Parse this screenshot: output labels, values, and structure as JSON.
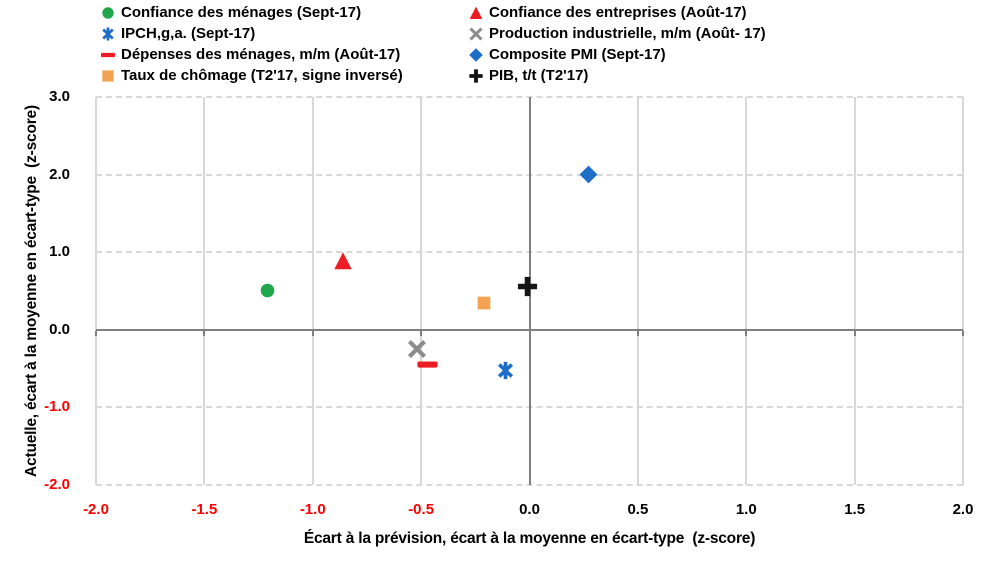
{
  "chart_data": {
    "type": "scatter",
    "title": "",
    "xlabel": "Écart à la prévision, écart à la moyenne en écart-type  (z-score)",
    "ylabel": "Actuelle, écart à la moyenne en écart-type  (z-score)",
    "xlim": [
      -2.0,
      2.0
    ],
    "ylim": [
      -2.0,
      3.0
    ],
    "x_ticks": [
      -2.0,
      -1.5,
      -1.0,
      -0.5,
      0.0,
      0.5,
      1.0,
      1.5,
      2.0
    ],
    "y_ticks": [
      3.0,
      2.0,
      1.0,
      0.0,
      -1.0,
      -2.0
    ],
    "grid": {
      "horizontal": "dashed",
      "vertical": "solid",
      "zero_lines": "solid-dark"
    },
    "legend_position": "top",
    "colors": {
      "green": "#21A74B",
      "red": "#ED1C24",
      "blue": "#1E6EC8",
      "gray": "#8C8C8C",
      "orange": "#F2A352",
      "black": "#151515",
      "negative_tick": "#FF0000",
      "axis_line": "#7F7F7F",
      "gridline": "#D8D8D8"
    },
    "series": [
      {
        "id": "confiance-menages",
        "name": "Confiance des ménages (Sept-17)",
        "marker": "circle",
        "color": "#21A74B",
        "size": 19,
        "x": -1.21,
        "y": 0.51
      },
      {
        "id": "confiance-entreprises",
        "name": "Confiance des entreprises (Août-17)",
        "marker": "triangle",
        "color": "#ED1C24",
        "size": 22,
        "x": -0.86,
        "y": 0.89
      },
      {
        "id": "ipch",
        "name": "IPCH,g,a. (Sept-17)",
        "marker": "star-x",
        "color": "#1E6EC8",
        "size": 21,
        "x": -0.11,
        "y": -0.52
      },
      {
        "id": "production-industrielle",
        "name": "Production industrielle, m/m (Août- 17)",
        "marker": "x",
        "color": "#8C8C8C",
        "size": 22,
        "x": -0.52,
        "y": -0.25
      },
      {
        "id": "depenses-menages",
        "name": "Dépenses des ménages, m/m (Août-17)",
        "marker": "dash",
        "color": "#ED1C24",
        "size": 23,
        "x": -0.47,
        "y": -0.45
      },
      {
        "id": "composite-pmi",
        "name": "Composite PMI (Sept-17)",
        "marker": "diamond",
        "color": "#1E6EC8",
        "size": 21,
        "x": 0.27,
        "y": 2.0
      },
      {
        "id": "taux-chomage",
        "name": "Taux de chômage (T2'17, signe inversé)",
        "marker": "square",
        "color": "#F2A352",
        "size": 18,
        "x": -0.21,
        "y": 0.34
      },
      {
        "id": "pib",
        "name": "PIB, t/t (T2'17)",
        "marker": "plus",
        "color": "#151515",
        "size": 23,
        "x": -0.01,
        "y": 0.56
      }
    ]
  }
}
